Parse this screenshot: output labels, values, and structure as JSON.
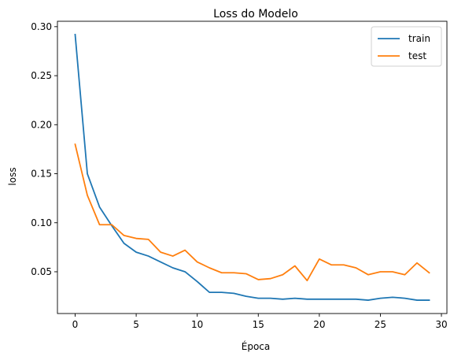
{
  "chart_data": {
    "type": "line",
    "title": "Loss do Modelo",
    "xlabel": "Época",
    "ylabel": "loss",
    "xlim": [
      -1.45,
      30.45
    ],
    "ylim": [
      0.0074,
      0.3055
    ],
    "xticks": [
      0,
      5,
      10,
      15,
      20,
      25,
      30
    ],
    "xtick_labels": [
      "0",
      "5",
      "10",
      "15",
      "20",
      "25",
      "30"
    ],
    "yticks": [
      0.05,
      0.1,
      0.15,
      0.2,
      0.25,
      0.3
    ],
    "ytick_labels": [
      "0.05",
      "0.10",
      "0.15",
      "0.20",
      "0.25",
      "0.30"
    ],
    "grid": false,
    "legend_position": "top-right",
    "x": [
      0,
      1,
      2,
      3,
      4,
      5,
      6,
      7,
      8,
      9,
      10,
      11,
      12,
      13,
      14,
      15,
      16,
      17,
      18,
      19,
      20,
      21,
      22,
      23,
      24,
      25,
      26,
      27,
      28,
      29
    ],
    "series": [
      {
        "name": "train",
        "color": "#1f77b4",
        "values": [
          0.292,
          0.15,
          0.116,
          0.097,
          0.079,
          0.07,
          0.066,
          0.06,
          0.054,
          0.05,
          0.04,
          0.029,
          0.029,
          0.028,
          0.025,
          0.023,
          0.023,
          0.022,
          0.023,
          0.022,
          0.022,
          0.022,
          0.022,
          0.022,
          0.021,
          0.023,
          0.024,
          0.023,
          0.021,
          0.021
        ]
      },
      {
        "name": "test",
        "color": "#ff7f0e",
        "values": [
          0.18,
          0.128,
          0.098,
          0.098,
          0.087,
          0.084,
          0.083,
          0.07,
          0.066,
          0.072,
          0.06,
          0.054,
          0.049,
          0.049,
          0.048,
          0.042,
          0.043,
          0.047,
          0.056,
          0.041,
          0.063,
          0.057,
          0.057,
          0.054,
          0.047,
          0.05,
          0.05,
          0.047,
          0.059,
          0.049
        ]
      }
    ]
  }
}
